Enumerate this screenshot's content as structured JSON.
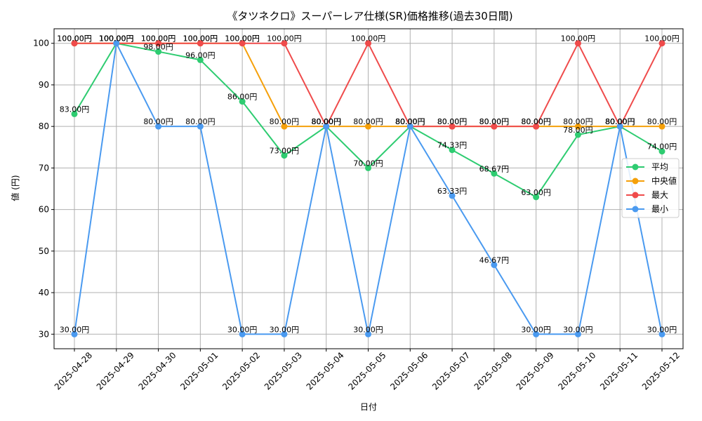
{
  "chart_data": {
    "type": "line",
    "title": "《タツネクロ》スーパーレア仕様(SR)価格推移(過去30日間)",
    "xlabel": "日付",
    "ylabel": "値 (円)",
    "ylim": [
      26.5,
      103.5
    ],
    "yticks": [
      30,
      40,
      50,
      60,
      70,
      80,
      90,
      100
    ],
    "grid": true,
    "legend_position": "right",
    "categories": [
      "2025-04-28",
      "2025-04-29",
      "2025-04-30",
      "2025-05-01",
      "2025-05-02",
      "2025-05-03",
      "2025-05-04",
      "2025-05-05",
      "2025-05-06",
      "2025-05-07",
      "2025-05-08",
      "2025-05-09",
      "2025-05-10",
      "2025-05-11",
      "2025-05-12"
    ],
    "series": [
      {
        "name": "平均",
        "color": "#2ecc71",
        "values": [
          83,
          100,
          98,
          96,
          86,
          73,
          80,
          70,
          80,
          74.33,
          68.67,
          63,
          78,
          80,
          74
        ],
        "labels": [
          "83.00円",
          "100.00円",
          "98.00円",
          "96.00円",
          "86.00円",
          "73.00円",
          "80.00円",
          "70.00円",
          "80.00円",
          "74.33円",
          "68.67円",
          "63.00円",
          "78.00円",
          "80.00円",
          "74.00円"
        ]
      },
      {
        "name": "中央値",
        "color": "#f5a00a",
        "values": [
          100,
          100,
          100,
          100,
          100,
          80,
          80,
          80,
          80,
          80,
          80,
          80,
          80,
          80,
          80
        ],
        "labels": [
          "100.00円",
          "100.00円",
          "100.00円",
          "100.00円",
          "100.00円",
          "80.00円",
          "80.00円",
          "80.00円",
          "80.00円",
          "80.00円",
          "80.00円",
          "80.00円",
          "80.00円",
          "80.00円",
          "80.00円"
        ]
      },
      {
        "name": "最大",
        "color": "#ef4b4b",
        "values": [
          100,
          100,
          100,
          100,
          100,
          100,
          80,
          100,
          80,
          80,
          80,
          80,
          100,
          80,
          100
        ],
        "labels": [
          "100.00円",
          "100.00円",
          "100.00円",
          "100.00円",
          "100.00円",
          "100.00円",
          "80.00円",
          "100.00円",
          "80.00円",
          "80.00円",
          "80.00円",
          "80.00円",
          "100.00円",
          "80.00円",
          "100.00円"
        ]
      },
      {
        "name": "最小",
        "color": "#4a9af0",
        "values": [
          30,
          100,
          80,
          80,
          30,
          30,
          80,
          30,
          80,
          63.33,
          46.67,
          30,
          30,
          80,
          30
        ],
        "labels": [
          "30.00円",
          "100.00円",
          "80.00円",
          "80.00円",
          "30.00円",
          "30.00円",
          "80.00円",
          "30.00円",
          "80.00円",
          "63.33円",
          "46.67円",
          "30.00円",
          "30.00円",
          "80.00円",
          "30.00円"
        ]
      }
    ]
  }
}
